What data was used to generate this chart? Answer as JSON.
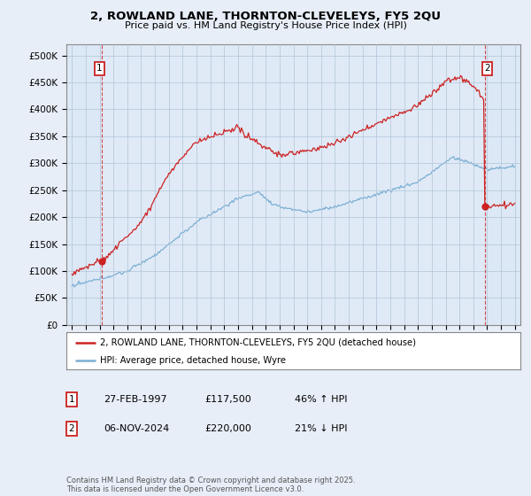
{
  "title_line1": "2, ROWLAND LANE, THORNTON-CLEVELEYS, FY5 2QU",
  "title_line2": "Price paid vs. HM Land Registry's House Price Index (HPI)",
  "ylim": [
    0,
    520000
  ],
  "yticks": [
    0,
    50000,
    100000,
    150000,
    200000,
    250000,
    300000,
    350000,
    400000,
    450000,
    500000
  ],
  "ytick_labels": [
    "£0",
    "£50K",
    "£100K",
    "£150K",
    "£200K",
    "£250K",
    "£300K",
    "£350K",
    "£400K",
    "£450K",
    "£500K"
  ],
  "hpi_color": "#7bafd4",
  "price_color": "#cc2222",
  "background_color": "#e8eef8",
  "plot_bg_color": "#dce8f5",
  "grid_color": "#b0c4d8",
  "sale1_year": 1997.15,
  "sale1_price": 117500,
  "sale1_label": "1",
  "sale2_year": 2024.85,
  "sale2_price": 220000,
  "sale2_label": "2",
  "legend_label_price": "2, ROWLAND LANE, THORNTON-CLEVELEYS, FY5 2QU (detached house)",
  "legend_label_hpi": "HPI: Average price, detached house, Wyre",
  "footnote": "Contains HM Land Registry data © Crown copyright and database right 2025.\nThis data is licensed under the Open Government Licence v3.0.",
  "table_entries": [
    {
      "num": "1",
      "date": "27-FEB-1997",
      "price": "£117,500",
      "change": "46% ↑ HPI"
    },
    {
      "num": "2",
      "date": "06-NOV-2024",
      "price": "£220,000",
      "change": "21% ↓ HPI"
    }
  ],
  "xlim_start": 1994.6,
  "xlim_end": 2027.4
}
